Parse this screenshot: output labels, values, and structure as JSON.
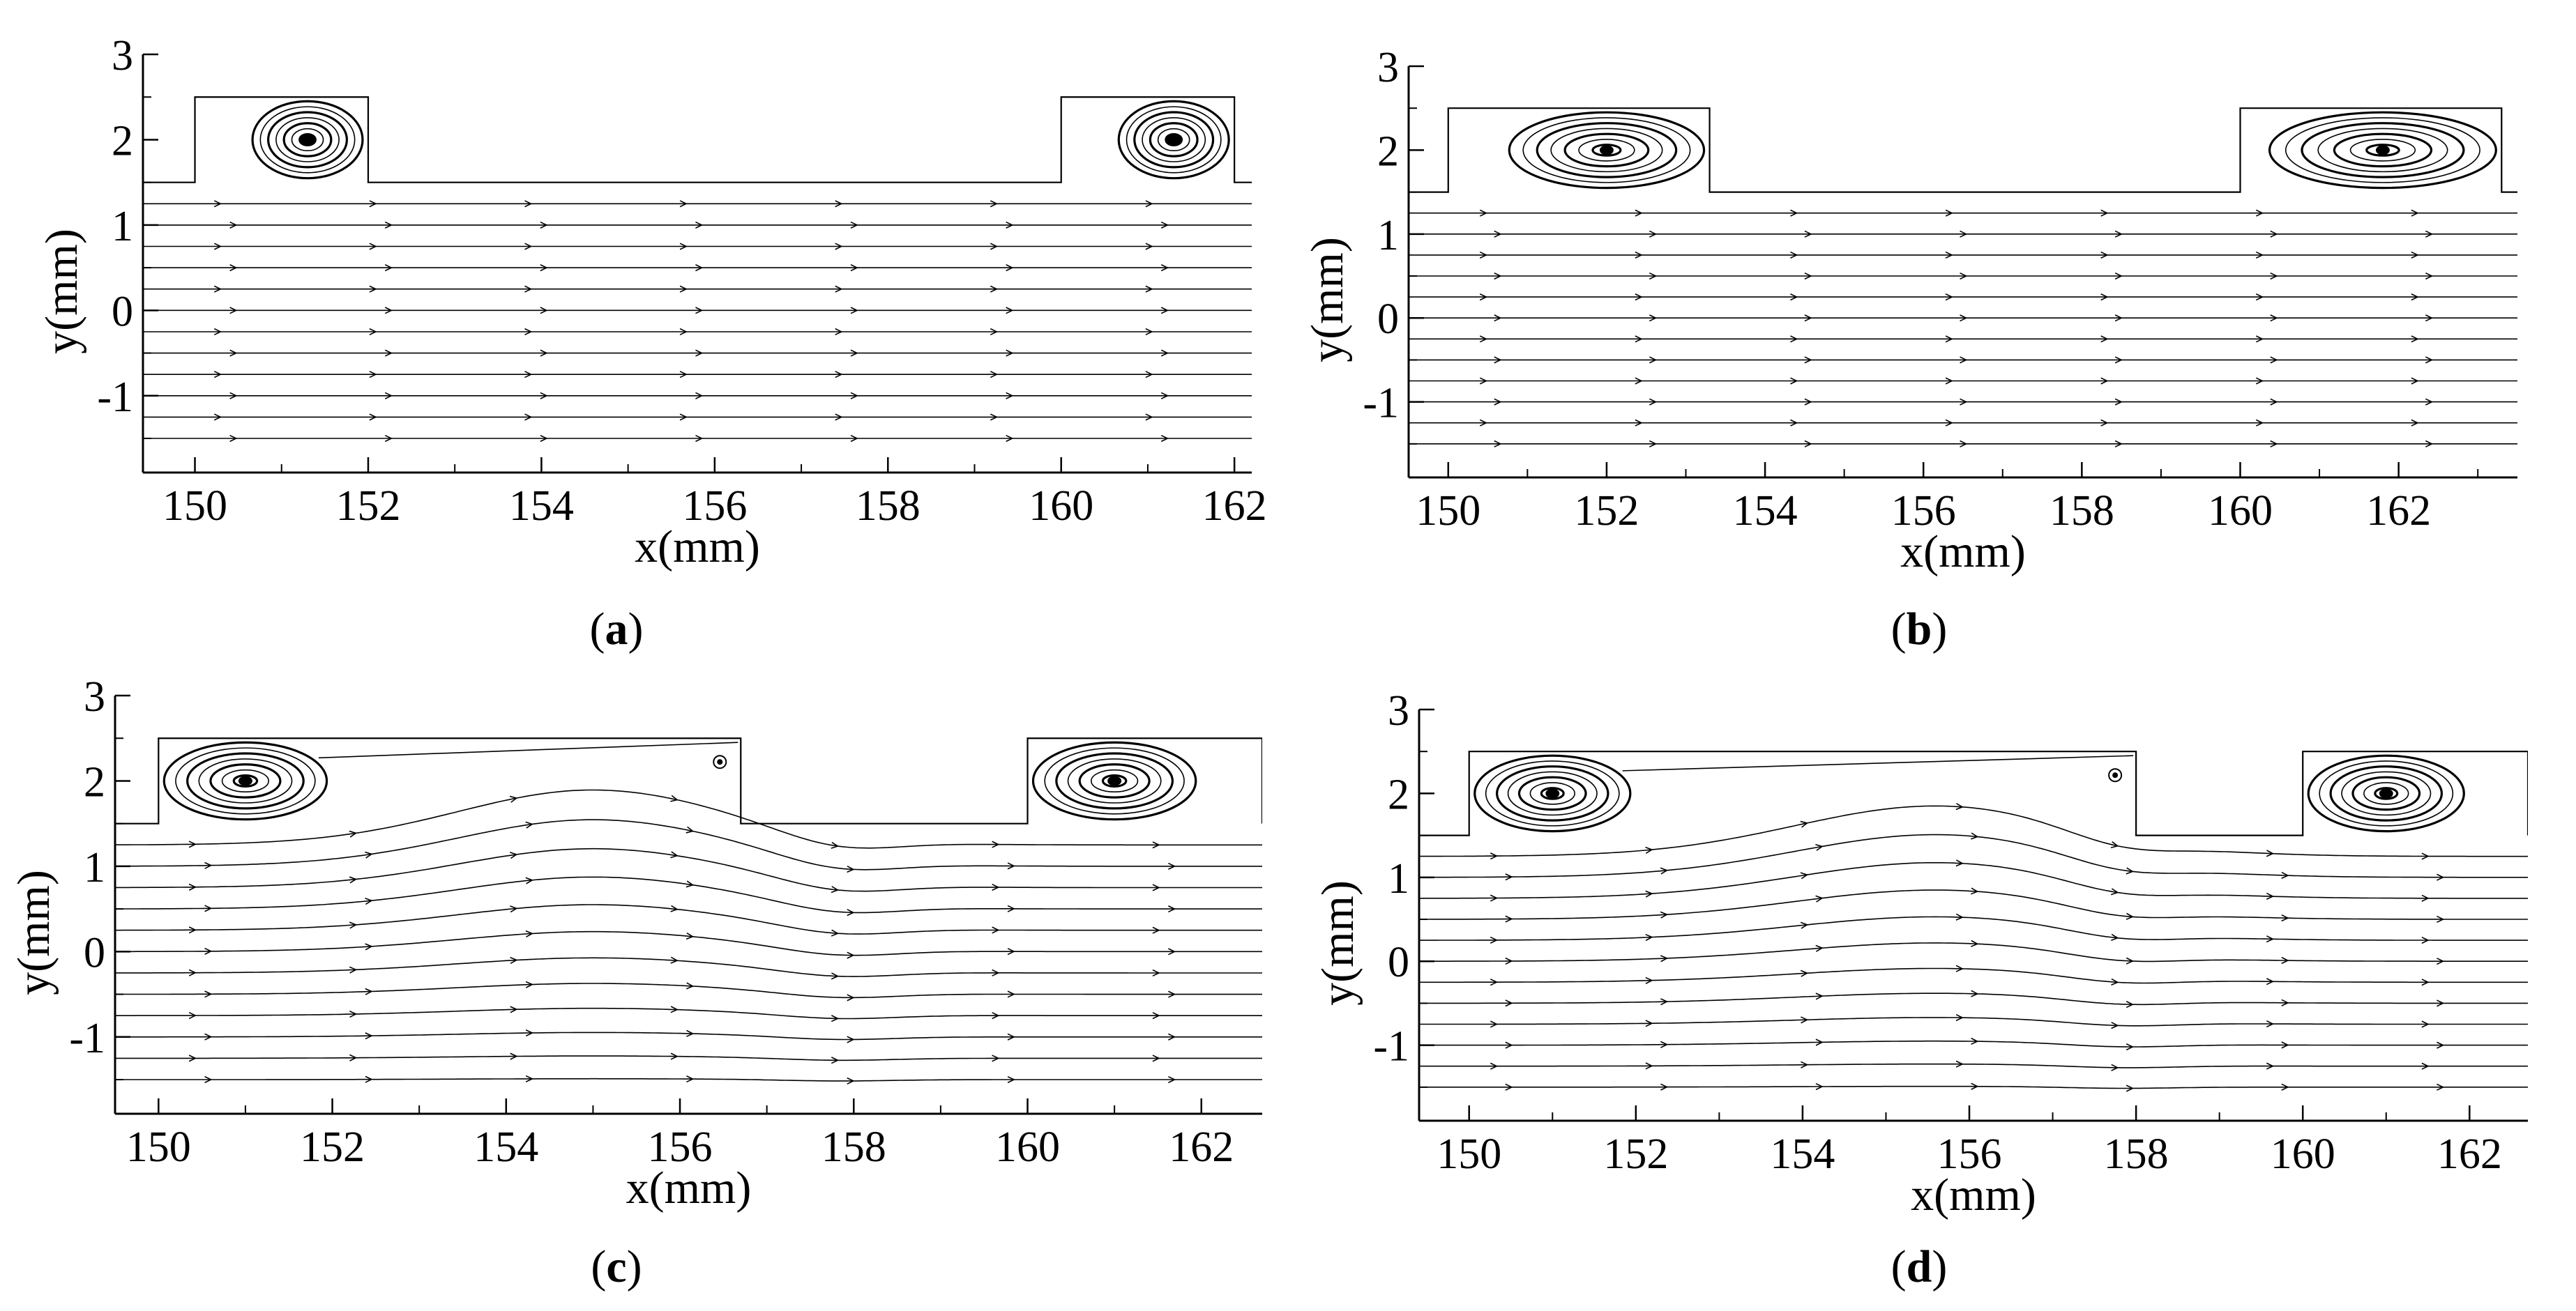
{
  "colors": {
    "background": "#ffffff",
    "ink": "#000000"
  },
  "chart_data": [
    {
      "panel": "(a)",
      "panel_letter": "a",
      "type": "scatter",
      "plot_kind": "streamline",
      "xlabel": "x(mm)",
      "ylabel": "y(mm)",
      "xlim": [
        149.4,
        162.2
      ],
      "ylim": [
        -1.9,
        3.0
      ],
      "xticks": [
        150,
        152,
        154,
        156,
        158,
        160,
        162
      ],
      "yticks": [
        3,
        2,
        1,
        0,
        -1
      ],
      "grid": false,
      "channel": {
        "bottom": -1.9,
        "top": 1.5
      },
      "cavities": [
        {
          "x_start": 150.0,
          "x_end": 152.0,
          "y_bottom": 1.5,
          "y_top": 2.5,
          "vortex_center": [
            151.3,
            2.0
          ]
        },
        {
          "x_start": 160.0,
          "x_end": 162.0,
          "y_bottom": 1.5,
          "y_top": 2.5,
          "vortex_center": [
            161.3,
            2.0
          ]
        }
      ],
      "bump": null,
      "streamline_y": [
        1.25,
        1.0,
        0.75,
        0.5,
        0.25,
        0.0,
        -0.25,
        -0.5,
        -0.75,
        -1.0,
        -1.25,
        -1.5
      ],
      "flow_direction": "+x"
    },
    {
      "panel": "(b)",
      "panel_letter": "b",
      "type": "scatter",
      "plot_kind": "streamline",
      "xlabel": "x(mm)",
      "ylabel": "y(mm)",
      "xlim": [
        149.5,
        163.5
      ],
      "ylim": [
        -1.9,
        3.0
      ],
      "xticks": [
        150,
        152,
        154,
        156,
        158,
        160,
        162
      ],
      "yticks": [
        3,
        2,
        1,
        0,
        -1
      ],
      "grid": false,
      "channel": {
        "bottom": -1.9,
        "top": 1.5
      },
      "cavities": [
        {
          "x_start": 150.0,
          "x_end": 153.3,
          "y_bottom": 1.5,
          "y_top": 2.5,
          "vortex_center": [
            152.0,
            2.0
          ]
        },
        {
          "x_start": 160.0,
          "x_end": 163.3,
          "y_bottom": 1.5,
          "y_top": 2.5,
          "vortex_center": [
            161.8,
            2.0
          ]
        }
      ],
      "bump": null,
      "streamline_y": [
        1.25,
        1.0,
        0.75,
        0.5,
        0.25,
        0.0,
        -0.25,
        -0.5,
        -0.75,
        -1.0,
        -1.25,
        -1.5
      ],
      "flow_direction": "+x"
    },
    {
      "panel": "(c)",
      "panel_letter": "c",
      "type": "scatter",
      "plot_kind": "streamline",
      "xlabel": "x(mm)",
      "ylabel": "y(mm)",
      "xlim": [
        149.5,
        162.7
      ],
      "ylim": [
        -1.9,
        3.0
      ],
      "xticks": [
        150,
        152,
        154,
        156,
        158,
        160,
        162
      ],
      "yticks": [
        3,
        2,
        1,
        0,
        -1
      ],
      "grid": false,
      "channel": {
        "bottom": -1.9,
        "top": 1.5
      },
      "cavities": [
        {
          "x_start": 150.0,
          "x_end": 156.7,
          "y_bottom": 1.5,
          "y_top": 2.5,
          "vortex_center": [
            151.0,
            2.0
          ]
        },
        {
          "x_start": 160.0,
          "x_end": 162.7,
          "y_bottom": 1.5,
          "y_top": 2.5,
          "vortex_center": [
            161.0,
            2.0
          ]
        }
      ],
      "bump": {
        "center": 155.0,
        "width": 2.2,
        "amplitude": 0.75
      },
      "streamline_y": [
        1.25,
        1.0,
        0.75,
        0.5,
        0.25,
        0.0,
        -0.25,
        -0.5,
        -0.75,
        -1.0,
        -1.25,
        -1.5
      ],
      "flow_direction": "+x"
    },
    {
      "panel": "(d)",
      "panel_letter": "d",
      "type": "scatter",
      "plot_kind": "streamline",
      "xlabel": "x(mm)",
      "ylabel": "y(mm)",
      "xlim": [
        149.4,
        162.7
      ],
      "ylim": [
        -1.9,
        3.0
      ],
      "xticks": [
        150,
        152,
        154,
        156,
        158,
        160,
        162
      ],
      "yticks": [
        3,
        2,
        1,
        0,
        -1
      ],
      "grid": false,
      "channel": {
        "bottom": -1.9,
        "top": 1.5
      },
      "cavities": [
        {
          "x_start": 150.0,
          "x_end": 158.0,
          "y_bottom": 1.5,
          "y_top": 2.5,
          "vortex_center": [
            151.0,
            2.0
          ]
        },
        {
          "x_start": 160.0,
          "x_end": 162.7,
          "y_bottom": 1.5,
          "y_top": 2.5,
          "vortex_center": [
            161.0,
            2.0
          ]
        }
      ],
      "bump": {
        "center": 155.6,
        "width": 2.4,
        "amplitude": 0.7
      },
      "streamline_y": [
        1.25,
        1.0,
        0.75,
        0.5,
        0.25,
        0.0,
        -0.25,
        -0.5,
        -0.75,
        -1.0,
        -1.25,
        -1.5
      ],
      "flow_direction": "+x"
    }
  ]
}
